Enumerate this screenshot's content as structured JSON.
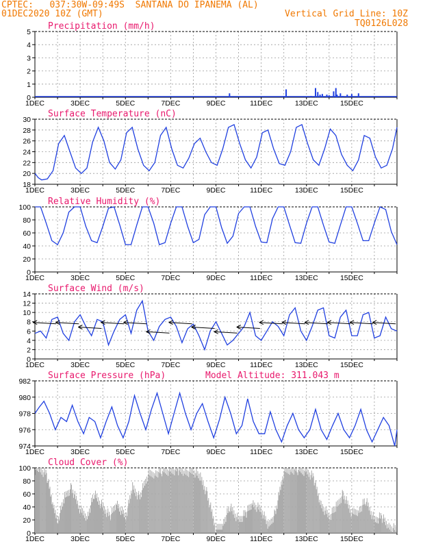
{
  "header": {
    "station": "CPTEC:   037:30W-09:49S  SANTANA DO IPANEMA (AL)",
    "datetime": "01DEC2020 10Z (GMT)",
    "grid_line": "Vertical Grid Line: 10Z",
    "code": "TQ0126L028"
  },
  "colors": {
    "header": "#f07800",
    "title": "#e8186c",
    "line": "#1f3fe0",
    "bar": "#1f3fe0",
    "cloud": "#a8a8a8"
  },
  "x_axis": {
    "days": 16,
    "labels": [
      "1DEC",
      "3DEC",
      "5DEC",
      "7DEC",
      "9DEC",
      "11DEC",
      "13DEC",
      "15DEC"
    ],
    "label_days": [
      0,
      2,
      4,
      6,
      8,
      10,
      12,
      14
    ]
  },
  "chart_data": [
    {
      "name": "precipitation",
      "type": "bar",
      "title": "Precipitation (mm/h)",
      "ylim": [
        0,
        5
      ],
      "yticks": [
        0,
        1,
        2,
        3,
        4,
        5
      ],
      "x": [
        8.0,
        8.6,
        11.0,
        11.1,
        12.0,
        12.2,
        12.4,
        12.5,
        12.6,
        12.7,
        12.9,
        13.0,
        13.2,
        13.3,
        13.35,
        13.5,
        13.6,
        13.8,
        14.0,
        14.3
      ],
      "values": [
        0.05,
        0.3,
        0.1,
        0.6,
        0.05,
        0.1,
        0.7,
        0.4,
        0.2,
        0.25,
        0.2,
        0.15,
        0.45,
        0.7,
        0.2,
        0.3,
        0.1,
        0.2,
        0.25,
        0.3
      ]
    },
    {
      "name": "temperature",
      "type": "line",
      "title": "Surface Temperature (nC)",
      "ylim": [
        18,
        30
      ],
      "yticks": [
        18,
        20,
        22,
        24,
        26,
        28,
        30
      ],
      "x": [
        0,
        0.15,
        0.3,
        0.55,
        0.8,
        1.05,
        1.3,
        1.55,
        1.8,
        2.05,
        2.3,
        2.55,
        2.8,
        3.05,
        3.3,
        3.55,
        3.8,
        4.05,
        4.3,
        4.55,
        4.8,
        5.05,
        5.3,
        5.55,
        5.8,
        6.05,
        6.3,
        6.55,
        6.8,
        7.05,
        7.3,
        7.55,
        7.8,
        8.05,
        8.3,
        8.55,
        8.8,
        9.05,
        9.3,
        9.55,
        9.8,
        10.05,
        10.3,
        10.55,
        10.8,
        11.05,
        11.3,
        11.55,
        11.8,
        12.05,
        12.3,
        12.55,
        12.8,
        13.05,
        13.3,
        13.55,
        13.8,
        14.05,
        14.3,
        14.55,
        14.8,
        15.05,
        15.3,
        15.55,
        15.8,
        16
      ],
      "values": [
        20,
        19.2,
        18.8,
        19,
        20.5,
        25.5,
        27,
        24,
        21,
        20,
        21,
        25.8,
        28.5,
        26,
        22,
        20.8,
        22.5,
        27.5,
        28.5,
        24.5,
        21.5,
        20.5,
        22,
        27,
        28.5,
        24.5,
        21.5,
        21,
        22.8,
        25.5,
        26.5,
        24,
        22,
        21.5,
        24.5,
        28.5,
        29,
        25.5,
        22.5,
        21,
        23,
        27.5,
        28,
        24.5,
        21.8,
        21.5,
        24,
        28.5,
        29,
        25.5,
        22.5,
        21.5,
        24.5,
        28.2,
        27,
        23.5,
        21.5,
        20.5,
        22.5,
        27,
        26.5,
        23,
        21,
        21.5,
        24.5,
        28.5
      ]
    },
    {
      "name": "humidity",
      "type": "line",
      "title": "Relative Humidity (%)",
      "ylim": [
        0,
        100
      ],
      "yticks": [
        0,
        20,
        40,
        60,
        80,
        100
      ],
      "x": [
        0,
        0.25,
        0.5,
        0.75,
        1.0,
        1.25,
        1.5,
        1.75,
        2.0,
        2.25,
        2.5,
        2.75,
        3.0,
        3.25,
        3.5,
        3.75,
        4.0,
        4.25,
        4.5,
        4.75,
        5.0,
        5.25,
        5.5,
        5.75,
        6.0,
        6.25,
        6.5,
        6.75,
        7.0,
        7.25,
        7.5,
        7.75,
        8.0,
        8.25,
        8.5,
        8.75,
        9.0,
        9.25,
        9.5,
        9.75,
        10.0,
        10.25,
        10.5,
        10.75,
        11.0,
        11.25,
        11.5,
        11.75,
        12.0,
        12.25,
        12.5,
        12.75,
        13.0,
        13.25,
        13.5,
        13.75,
        14.0,
        14.25,
        14.5,
        14.75,
        15.0,
        15.25,
        15.5,
        15.75,
        16
      ],
      "values": [
        100,
        100,
        75,
        48,
        42,
        60,
        92,
        100,
        100,
        70,
        48,
        45,
        70,
        98,
        100,
        72,
        42,
        42,
        72,
        100,
        100,
        75,
        42,
        45,
        75,
        100,
        100,
        70,
        45,
        50,
        88,
        100,
        100,
        68,
        44,
        55,
        90,
        100,
        100,
        70,
        46,
        45,
        82,
        100,
        100,
        72,
        45,
        44,
        75,
        100,
        100,
        72,
        46,
        44,
        72,
        100,
        100,
        75,
        48,
        48,
        75,
        100,
        96,
        62,
        42
      ]
    },
    {
      "name": "wind",
      "type": "line",
      "title": "Surface Wind (m/s)",
      "ylim": [
        0,
        14
      ],
      "yticks": [
        0,
        2,
        4,
        6,
        8,
        10,
        12,
        14
      ],
      "x": [
        0,
        0.25,
        0.5,
        0.75,
        1.0,
        1.25,
        1.5,
        1.75,
        2.0,
        2.25,
        2.5,
        2.75,
        3.0,
        3.25,
        3.5,
        3.75,
        4.0,
        4.25,
        4.5,
        4.75,
        5.0,
        5.25,
        5.5,
        5.75,
        6.0,
        6.25,
        6.5,
        6.75,
        7.0,
        7.25,
        7.5,
        7.75,
        8.0,
        8.25,
        8.5,
        8.75,
        9.0,
        9.25,
        9.5,
        9.75,
        10.0,
        10.25,
        10.5,
        10.75,
        11.0,
        11.25,
        11.5,
        11.75,
        12.0,
        12.25,
        12.5,
        12.75,
        13.0,
        13.25,
        13.5,
        13.75,
        14.0,
        14.25,
        14.5,
        14.75,
        15.0,
        15.25,
        15.5,
        15.75,
        16
      ],
      "values": [
        5.5,
        6,
        4.5,
        8.5,
        9,
        5.5,
        4,
        8,
        9.5,
        7,
        5,
        8.5,
        8,
        3,
        6,
        8.5,
        9.5,
        5.5,
        10.5,
        12.5,
        6,
        4,
        7,
        8.5,
        9,
        7,
        3.5,
        6.5,
        7.5,
        5,
        2,
        6,
        8,
        5.5,
        3,
        4,
        5.5,
        7,
        10,
        5,
        4,
        6,
        8,
        7,
        5,
        9.5,
        11,
        6,
        4,
        7,
        10.5,
        11,
        5,
        4.5,
        9,
        10.5,
        5,
        5,
        9.5,
        10,
        4.5,
        5,
        9,
        6.5,
        6
      ],
      "barbs": [
        {
          "x": 0.4,
          "s": 8
        },
        {
          "x": 1.4,
          "s": 8
        },
        {
          "x": 2.4,
          "s": 7
        },
        {
          "x": 3.4,
          "s": 8
        },
        {
          "x": 4.4,
          "s": 8
        },
        {
          "x": 5.4,
          "s": 6
        },
        {
          "x": 6.4,
          "s": 8
        },
        {
          "x": 7.4,
          "s": 7
        },
        {
          "x": 8.4,
          "s": 6
        },
        {
          "x": 9.4,
          "s": 7
        },
        {
          "x": 10.4,
          "s": 8
        },
        {
          "x": 11.4,
          "s": 8
        },
        {
          "x": 12.4,
          "s": 8
        },
        {
          "x": 13.4,
          "s": 8
        },
        {
          "x": 14.4,
          "s": 8
        },
        {
          "x": 15.4,
          "s": 8
        }
      ]
    },
    {
      "name": "pressure",
      "type": "line",
      "title": "Surface Pressure (hPa)",
      "subtitle": "Model Altitude: 311.043 m",
      "ylim": [
        974,
        982
      ],
      "yticks": [
        974,
        976,
        978,
        980,
        982
      ],
      "x": [
        0,
        0.2,
        0.4,
        0.65,
        0.9,
        1.15,
        1.4,
        1.65,
        1.9,
        2.15,
        2.4,
        2.65,
        2.9,
        3.15,
        3.4,
        3.65,
        3.9,
        4.15,
        4.4,
        4.65,
        4.9,
        5.15,
        5.4,
        5.65,
        5.9,
        6.15,
        6.4,
        6.65,
        6.9,
        7.15,
        7.4,
        7.65,
        7.9,
        8.15,
        8.4,
        8.65,
        8.9,
        9.15,
        9.4,
        9.65,
        9.9,
        10.15,
        10.4,
        10.65,
        10.9,
        11.15,
        11.4,
        11.65,
        11.9,
        12.15,
        12.4,
        12.65,
        12.9,
        13.15,
        13.4,
        13.65,
        13.9,
        14.15,
        14.4,
        14.65,
        14.9,
        15.15,
        15.4,
        15.65,
        15.9,
        16
      ],
      "values": [
        978,
        978.8,
        979.5,
        978,
        976,
        977.5,
        977,
        979,
        977,
        975.5,
        977.5,
        977,
        975,
        977,
        978.8,
        976.5,
        975,
        977,
        980.2,
        978,
        976,
        978.5,
        980.5,
        978,
        975.5,
        978,
        980.5,
        978,
        976,
        978,
        979.2,
        977,
        975,
        977.2,
        980,
        978,
        975.5,
        976.5,
        979.8,
        977,
        975.5,
        975.5,
        978.2,
        976,
        974.5,
        976.5,
        978,
        976,
        975,
        976,
        978.5,
        976,
        974.8,
        976.5,
        978,
        976,
        975,
        976.5,
        978.5,
        976,
        974.5,
        976,
        977.5,
        976.5,
        974,
        976
      ]
    },
    {
      "name": "cloud",
      "type": "area",
      "title": "Cloud Cover (%)",
      "ylim": [
        0,
        100
      ],
      "yticks": [
        0,
        20,
        40,
        60,
        80,
        100
      ],
      "x": [
        0,
        0.2,
        0.5,
        0.8,
        1.0,
        1.3,
        1.6,
        2.0,
        2.3,
        2.6,
        3.0,
        3.3,
        3.6,
        4.0,
        4.3,
        4.6,
        5.0,
        5.3,
        5.6,
        6.0,
        6.3,
        6.6,
        7.0,
        7.3,
        7.6,
        8.0,
        8.3,
        8.6,
        9.0,
        9.3,
        9.6,
        10.0,
        10.3,
        10.6,
        11.0,
        11.3,
        11.6,
        12.0,
        12.3,
        12.6,
        13.0,
        13.3,
        13.6,
        14.0,
        14.3,
        14.6,
        15.0,
        15.3,
        15.6,
        16
      ],
      "values": [
        97,
        98,
        90,
        40,
        20,
        55,
        70,
        35,
        25,
        60,
        40,
        25,
        45,
        25,
        70,
        55,
        90,
        92,
        95,
        96,
        97,
        93,
        95,
        85,
        60,
        5,
        15,
        40,
        20,
        30,
        45,
        35,
        10,
        30,
        95,
        98,
        97,
        95,
        85,
        45,
        25,
        40,
        60,
        30,
        35,
        50,
        20,
        25,
        10,
        5
      ]
    }
  ]
}
